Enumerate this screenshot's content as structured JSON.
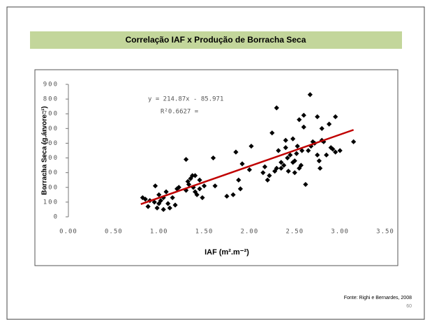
{
  "chart_data": {
    "type": "scatter",
    "title": "Correlação IAF x Produção de Borracha Seca",
    "xlabel": "IAF (m².m⁻²)",
    "ylabel": "Borracha Seca (g.árvore⁻¹)",
    "equation": "y = 214.87x - 85.971",
    "r2": "R²0.6627 =",
    "source": "Fonte: Righi e Bernardes, 2008",
    "page": "60",
    "color": "#000000",
    "x": [
      0.82,
      0.85,
      0.88,
      0.9,
      0.95,
      0.96,
      0.98,
      1.0,
      1.0,
      1.02,
      1.05,
      1.05,
      1.08,
      1.1,
      1.12,
      1.15,
      1.18,
      1.2,
      1.22,
      1.3,
      1.3,
      1.32,
      1.33,
      1.35,
      1.37,
      1.38,
      1.4,
      1.4,
      1.42,
      1.45,
      1.45,
      1.48,
      1.5,
      1.6,
      1.62,
      1.75,
      1.82,
      1.85,
      1.88,
      1.9,
      1.92,
      2.0,
      2.02,
      2.15,
      2.17,
      2.2,
      2.22,
      2.25,
      2.28,
      2.3,
      2.3,
      2.32,
      2.35,
      2.35,
      2.38,
      2.4,
      2.4,
      2.42,
      2.43,
      2.45,
      2.48,
      2.48,
      2.5,
      2.5,
      2.52,
      2.53,
      2.55,
      2.55,
      2.57,
      2.58,
      2.6,
      2.6,
      2.62,
      2.65,
      2.67,
      2.68,
      2.7,
      2.72,
      2.75,
      2.75,
      2.77,
      2.78,
      2.8,
      2.8,
      2.82,
      2.85,
      2.88,
      2.9,
      2.92,
      2.95,
      2.95,
      3.0,
      3.15
    ],
    "values": [
      130,
      120,
      70,
      110,
      100,
      210,
      60,
      90,
      150,
      110,
      50,
      130,
      170,
      90,
      60,
      130,
      80,
      190,
      200,
      390,
      180,
      240,
      220,
      260,
      280,
      200,
      170,
      280,
      150,
      250,
      190,
      130,
      210,
      400,
      210,
      140,
      150,
      440,
      250,
      190,
      360,
      320,
      480,
      300,
      340,
      250,
      280,
      570,
      310,
      330,
      740,
      450,
      370,
      330,
      350,
      470,
      520,
      400,
      310,
      420,
      530,
      370,
      380,
      300,
      430,
      480,
      660,
      330,
      350,
      450,
      690,
      610,
      220,
      450,
      830,
      480,
      510,
      500,
      420,
      680,
      380,
      330,
      600,
      520,
      510,
      420,
      630,
      470,
      460,
      680,
      440,
      450,
      510
    ],
    "trendline": {
      "color": "#c00000",
      "x": [
        0.8,
        3.15
      ],
      "values": [
        85.9,
        590.9
      ]
    },
    "xlim": [
      0,
      3.5
    ],
    "ylim": [
      0,
      900
    ],
    "xticks": [
      {
        "value": 0,
        "label": "0.00"
      },
      {
        "value": 0.5,
        "label": "0.50"
      },
      {
        "value": 1,
        "label": "1.00"
      },
      {
        "value": 1.5,
        "label": "1.50"
      },
      {
        "value": 2,
        "label": "2.00"
      },
      {
        "value": 2.5,
        "label": "2.50"
      },
      {
        "value": 3,
        "label": "3.00"
      },
      {
        "value": 3.5,
        "label": "3.50"
      }
    ],
    "yticks": [
      0,
      100,
      200,
      300,
      400,
      500,
      600,
      700,
      800,
      900
    ]
  }
}
